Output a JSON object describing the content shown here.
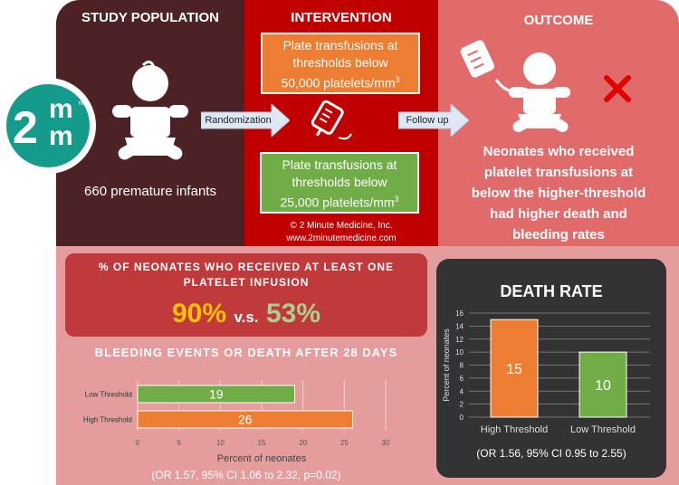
{
  "logo": {
    "text_top": "m",
    "text_left": "2",
    "text_bottom": "m",
    "tm": "TM"
  },
  "study": {
    "title": "STUDY POPULATION",
    "caption": "660 premature infants"
  },
  "randomization": "Randomization",
  "intervention": {
    "title": "INTERVENTION",
    "box1": {
      "line1": "Plate transfusions at",
      "line2": "thresholds below",
      "line3": "50,000 platelets/mm",
      "sup": "3"
    },
    "box2": {
      "line1": "Plate transfusions at",
      "line2": "thresholds below",
      "line3": "25,000 platelets/mm",
      "sup": "3"
    },
    "copyright": "© 2 Minute Medicine, Inc.",
    "website": "www.2minutemedicine.com"
  },
  "follow_up": "Follow up",
  "outcome": {
    "title": "OUTCOME",
    "lines": [
      "Neonates who received",
      "platelet transfusions at",
      "below the higher-threshold",
      "had higher death and",
      "bleeding rates"
    ]
  },
  "percent_box": {
    "line1": "% OF NEONATES WHO RECEIVED AT LEAST ONE",
    "line2": "PLATELET INFUSION",
    "value_a": "90%",
    "vs": "v.s.",
    "value_b": "53%"
  },
  "bleeding": {
    "title": "BLEEDING EVENTS OR DEATH AFTER 28 DAYS",
    "footnote": "(OR 1.57, 95% CI 1.06 to 2.32, p=0.02)"
  },
  "death_rate": {
    "title": "DEATH RATE",
    "footnote": "(OR 1.56, 95% CI 0.95 to 2.55)"
  },
  "colors": {
    "orange": "#ed7d31",
    "green": "#70ad47",
    "dark": "#4d2224",
    "red": "#c00000",
    "salmon": "#e16a6a",
    "pink": "#e49c9c",
    "teal": "#159b8c"
  },
  "chart_data": [
    {
      "type": "bar",
      "orientation": "horizontal",
      "title": "BLEEDING EVENTS OR DEATH AFTER 28 DAYS",
      "categories": [
        "Low Threshold",
        "High Threshold"
      ],
      "values": [
        19,
        26
      ],
      "colors": [
        "#70ad47",
        "#ed7d31"
      ],
      "xlabel": "Percent of neonates",
      "ylabel": "",
      "xlim": [
        0,
        30
      ],
      "xticks": [
        "0",
        "5",
        "10",
        "15",
        "20",
        "25",
        "30"
      ],
      "grid": true
    },
    {
      "type": "bar",
      "title": "DEATH RATE",
      "categories": [
        "High Threshold",
        "Low Threshold"
      ],
      "values": [
        15,
        10
      ],
      "colors": [
        "#ed7d31",
        "#70ad47"
      ],
      "xlabel": "",
      "ylabel": "Percent of neonates",
      "ylim": [
        0,
        16
      ],
      "yticks": [
        "0",
        "2",
        "4",
        "6",
        "8",
        "10",
        "12",
        "14",
        "16"
      ],
      "grid": true
    }
  ]
}
